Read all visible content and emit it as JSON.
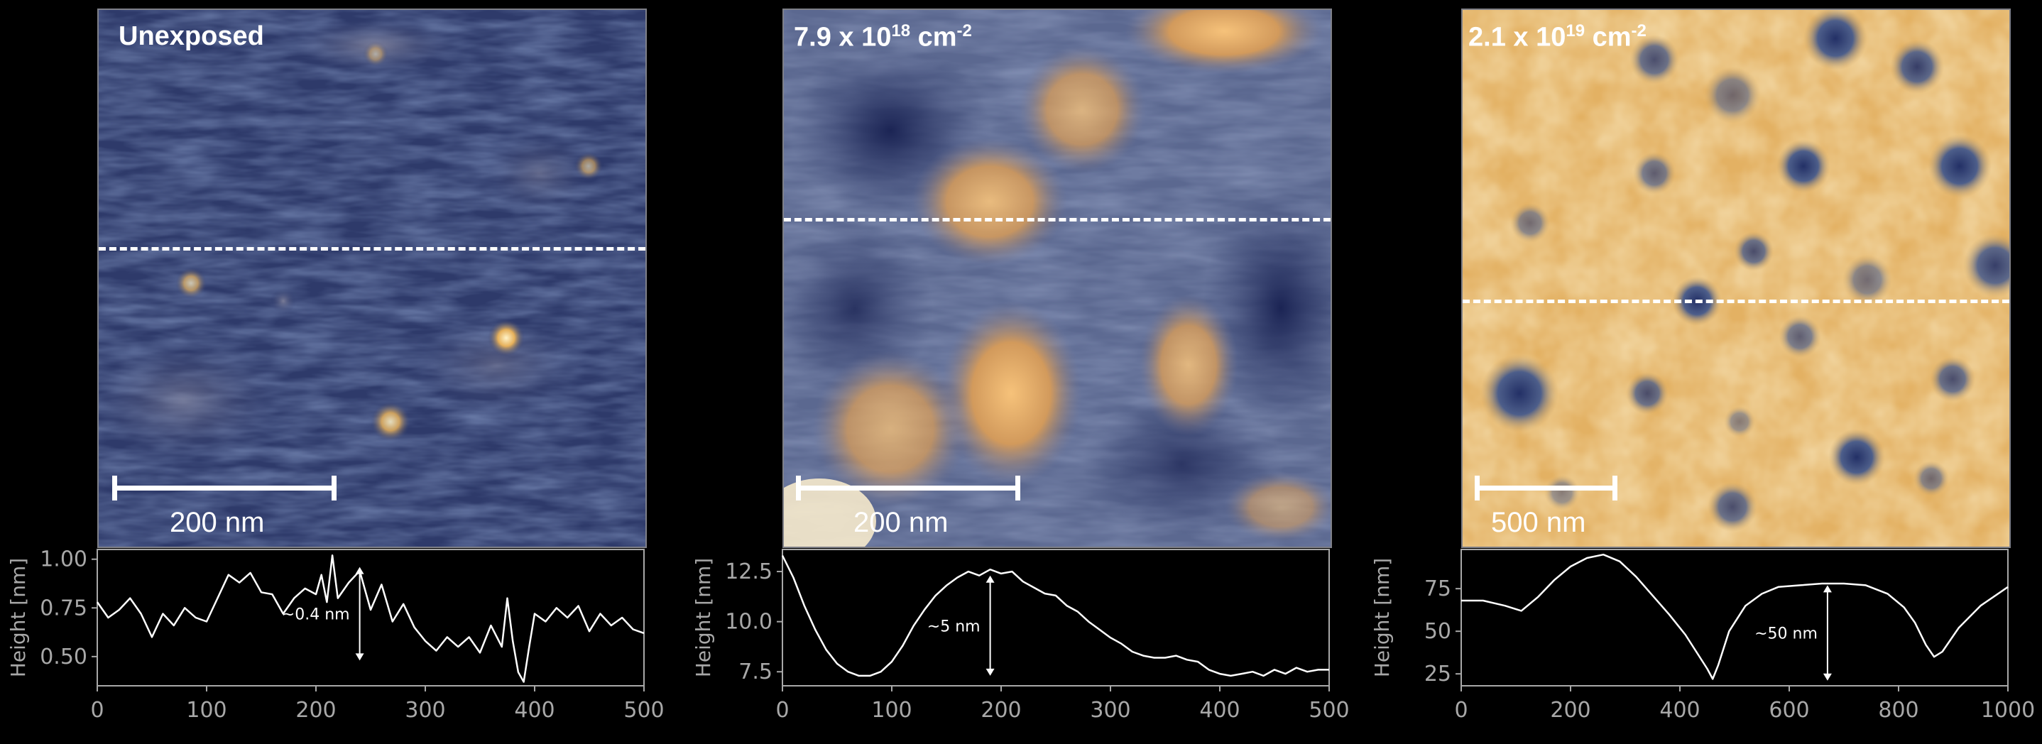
{
  "panels": [
    {
      "label_main": "Unexposed",
      "label_exp": "",
      "label_unit": "",
      "scale_bar": "200 nm",
      "theme": "dark"
    },
    {
      "label_main": "7.9 x 10",
      "label_exp": "18",
      "label_unit": " cm",
      "label_unit_exp": "-2",
      "scale_bar": "200 nm",
      "theme": "mixed"
    },
    {
      "label_main": "2.1 x 10",
      "label_exp": "19",
      "label_unit": " cm",
      "label_unit_exp": "-2",
      "scale_bar": "500 nm",
      "theme": "bright"
    }
  ],
  "colors": {
    "colormap_low": "#1a2550",
    "colormap_mid": "#54618a",
    "colormap_high": "#f2c878",
    "line": "#ffffff",
    "axis": "#a8a8a8"
  },
  "chart_data": [
    {
      "type": "line",
      "title": "",
      "xlabel": "",
      "ylabel": "Height [nm]",
      "xlim": [
        0,
        500
      ],
      "ylim": [
        0.35,
        1.05
      ],
      "xticks": [
        0,
        100,
        200,
        300,
        400,
        500
      ],
      "yticks": [
        0.5,
        0.75,
        1.0
      ],
      "ytick_labels": [
        "0.50",
        "0.75",
        "1.00"
      ],
      "annotation": {
        "text": "~0.4 nm",
        "x": 240,
        "y_top": 0.96,
        "y_bottom": 0.48
      },
      "series": [
        {
          "x": [
            0,
            10,
            20,
            30,
            40,
            50,
            60,
            70,
            80,
            90,
            100,
            110,
            120,
            130,
            140,
            150,
            160,
            170,
            180,
            190,
            200,
            205,
            210,
            215,
            220,
            230,
            240,
            250,
            260,
            270,
            280,
            290,
            300,
            310,
            320,
            330,
            340,
            350,
            360,
            370,
            375,
            380,
            385,
            390,
            395,
            400,
            410,
            420,
            430,
            440,
            450,
            460,
            470,
            480,
            490,
            500
          ],
          "y": [
            0.78,
            0.7,
            0.74,
            0.8,
            0.72,
            0.6,
            0.72,
            0.66,
            0.75,
            0.7,
            0.68,
            0.8,
            0.92,
            0.88,
            0.93,
            0.83,
            0.82,
            0.72,
            0.8,
            0.85,
            0.82,
            0.92,
            0.78,
            1.02,
            0.8,
            0.88,
            0.94,
            0.74,
            0.87,
            0.68,
            0.77,
            0.65,
            0.58,
            0.53,
            0.6,
            0.55,
            0.6,
            0.52,
            0.66,
            0.55,
            0.8,
            0.58,
            0.42,
            0.37,
            0.55,
            0.72,
            0.68,
            0.75,
            0.7,
            0.76,
            0.63,
            0.72,
            0.66,
            0.7,
            0.64,
            0.62
          ]
        }
      ]
    },
    {
      "type": "line",
      "title": "",
      "xlabel": "",
      "ylabel": "Height [nm]",
      "xlim": [
        0,
        500
      ],
      "ylim": [
        6.8,
        13.6
      ],
      "xticks": [
        0,
        100,
        200,
        300,
        400,
        500
      ],
      "yticks": [
        7.5,
        10.0,
        12.5
      ],
      "ytick_labels": [
        "7.5",
        "10.0",
        "12.5"
      ],
      "annotation": {
        "text": "~5 nm",
        "x": 190,
        "y_top": 12.3,
        "y_bottom": 7.3
      },
      "series": [
        {
          "x": [
            0,
            10,
            20,
            30,
            40,
            50,
            60,
            70,
            80,
            90,
            100,
            110,
            120,
            130,
            140,
            150,
            160,
            170,
            180,
            190,
            200,
            210,
            220,
            230,
            240,
            250,
            260,
            270,
            280,
            290,
            300,
            310,
            320,
            330,
            340,
            350,
            360,
            370,
            380,
            390,
            400,
            410,
            420,
            430,
            440,
            450,
            460,
            470,
            480,
            490,
            500
          ],
          "y": [
            13.3,
            12.2,
            10.8,
            9.6,
            8.6,
            7.9,
            7.5,
            7.3,
            7.3,
            7.5,
            8.0,
            8.8,
            9.8,
            10.6,
            11.3,
            11.8,
            12.2,
            12.5,
            12.3,
            12.6,
            12.4,
            12.5,
            12.0,
            11.7,
            11.4,
            11.3,
            10.8,
            10.5,
            10.0,
            9.6,
            9.2,
            8.9,
            8.5,
            8.3,
            8.2,
            8.2,
            8.3,
            8.1,
            8.0,
            7.6,
            7.4,
            7.3,
            7.4,
            7.5,
            7.3,
            7.6,
            7.4,
            7.7,
            7.5,
            7.6,
            7.6
          ]
        }
      ]
    },
    {
      "type": "line",
      "title": "",
      "xlabel": "",
      "ylabel": "Height [nm]",
      "xlim": [
        0,
        1000
      ],
      "ylim": [
        18,
        98
      ],
      "xticks": [
        0,
        200,
        400,
        600,
        800,
        1000
      ],
      "yticks": [
        25,
        50,
        75
      ],
      "ytick_labels": [
        "25",
        "50",
        "75"
      ],
      "annotation": {
        "text": "~50 nm",
        "x": 670,
        "y_top": 77,
        "y_bottom": 21
      },
      "series": [
        {
          "x": [
            0,
            40,
            80,
            110,
            140,
            170,
            200,
            230,
            260,
            290,
            320,
            350,
            380,
            410,
            430,
            450,
            460,
            470,
            490,
            520,
            550,
            580,
            620,
            660,
            700,
            740,
            780,
            810,
            830,
            850,
            865,
            880,
            910,
            950,
            1000
          ],
          "y": [
            68,
            68,
            65,
            62,
            70,
            80,
            88,
            93,
            95,
            91,
            82,
            71,
            60,
            48,
            38,
            28,
            22,
            30,
            50,
            65,
            72,
            76,
            77,
            78,
            78,
            77,
            72,
            64,
            55,
            42,
            35,
            38,
            52,
            65,
            76
          ]
        }
      ]
    }
  ]
}
